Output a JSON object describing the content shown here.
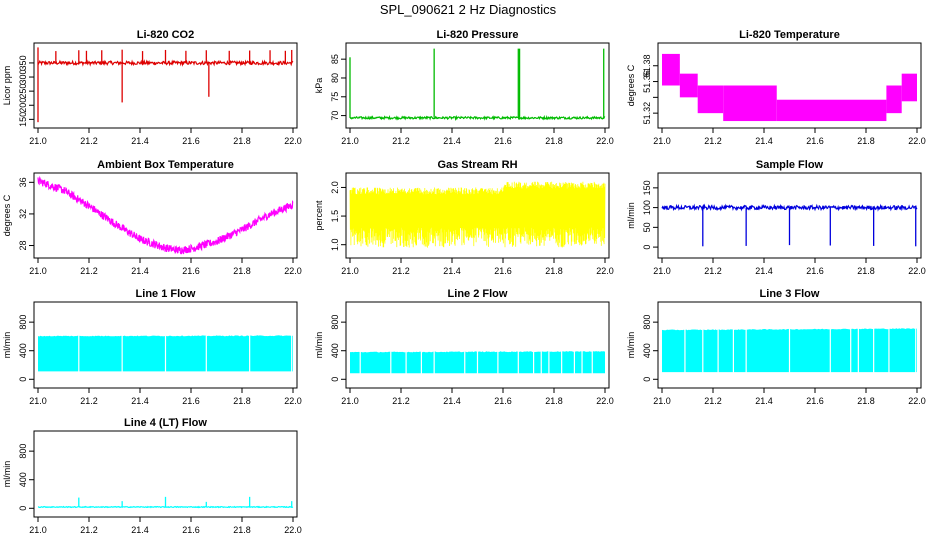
{
  "page_title": "SPL_090621  2 Hz Diagnostics",
  "chart_data": [
    {
      "type": "line",
      "title": "Li-820 CO2",
      "ylabel": "Licor ppm",
      "color": "#dd0000",
      "xlim": [
        21.0,
        22.0
      ],
      "ylim": [
        130,
        410
      ],
      "xticks": [
        "21.0",
        "21.2",
        "21.4",
        "21.6",
        "21.8",
        "22.0"
      ],
      "yticks": [
        150,
        200,
        250,
        300,
        350
      ],
      "series": {
        "name": "CO2",
        "baseline": 350,
        "noise": 6,
        "x_range": [
          21.0,
          22.0
        ],
        "spikes": [
          {
            "x": 21.0,
            "to": 140
          },
          {
            "x": 21.0,
            "to": 405
          },
          {
            "x": 21.07,
            "to": 392
          },
          {
            "x": 21.16,
            "to": 395
          },
          {
            "x": 21.19,
            "to": 393
          },
          {
            "x": 21.25,
            "to": 395
          },
          {
            "x": 21.33,
            "to": 210
          },
          {
            "x": 21.33,
            "to": 397
          },
          {
            "x": 21.41,
            "to": 392
          },
          {
            "x": 21.5,
            "to": 396
          },
          {
            "x": 21.58,
            "to": 393
          },
          {
            "x": 21.66,
            "to": 395
          },
          {
            "x": 21.67,
            "to": 230
          },
          {
            "x": 21.75,
            "to": 393
          },
          {
            "x": 21.83,
            "to": 394
          },
          {
            "x": 21.91,
            "to": 395
          },
          {
            "x": 21.97,
            "to": 393
          },
          {
            "x": 21.995,
            "to": 396
          }
        ]
      }
    },
    {
      "type": "line",
      "title": "Li-820 Pressure",
      "ylabel": "kPa",
      "color": "#00bb00",
      "xlim": [
        21.0,
        22.0
      ],
      "ylim": [
        67.5,
        88.5
      ],
      "xticks": [
        "21.0",
        "21.2",
        "21.4",
        "21.6",
        "21.8",
        "22.0"
      ],
      "yticks": [
        70,
        75,
        80,
        85
      ],
      "series": {
        "name": "Pressure",
        "baseline": 69.4,
        "noise": 0.3,
        "x_range": [
          21.0,
          22.0
        ],
        "spikes": [
          {
            "x": 21.0,
            "to": 85.5
          },
          {
            "x": 21.33,
            "to": 87.8
          },
          {
            "x": 21.66,
            "to": 87.8
          },
          {
            "x": 21.665,
            "to": 87.8
          },
          {
            "x": 21.995,
            "to": 87.8
          }
        ]
      }
    },
    {
      "type": "area",
      "title": "Li-820 Temperature",
      "ylabel": "degrees C",
      "color": "#ff00ff",
      "xlim": [
        21.0,
        22.0
      ],
      "ylim": [
        51.305,
        51.405
      ],
      "xticks": [
        "21.0",
        "21.2",
        "21.4",
        "21.6",
        "21.8",
        "22.0"
      ],
      "yticks": [
        51.32,
        51.34,
        51.36,
        51.38
      ],
      "ytick_labels": [
        "51.32",
        "",
        "51.36",
        "51.38"
      ],
      "bands": [
        {
          "x0": 21.0,
          "x1": 21.07,
          "lo": 51.355,
          "hi": 51.395
        },
        {
          "x0": 21.07,
          "x1": 21.14,
          "lo": 51.34,
          "hi": 51.37
        },
        {
          "x0": 21.14,
          "x1": 21.24,
          "lo": 51.32,
          "hi": 51.355
        },
        {
          "x0": 21.24,
          "x1": 21.45,
          "lo": 51.31,
          "hi": 51.355
        },
        {
          "x0": 21.45,
          "x1": 21.88,
          "lo": 51.31,
          "hi": 51.337
        },
        {
          "x0": 21.88,
          "x1": 21.94,
          "lo": 51.32,
          "hi": 51.355
        },
        {
          "x0": 21.94,
          "x1": 22.0,
          "lo": 51.335,
          "hi": 51.37
        }
      ]
    },
    {
      "type": "line",
      "title": "Ambient Box Temperature",
      "ylabel": "degrees C",
      "color": "#ff00ff",
      "xlim": [
        21.0,
        22.0
      ],
      "ylim": [
        26.8,
        36.8
      ],
      "xticks": [
        "21.0",
        "21.2",
        "21.4",
        "21.6",
        "21.8",
        "22.0"
      ],
      "yticks": [
        28,
        32,
        36
      ],
      "series": {
        "name": "Ambient",
        "x": [
          21.0,
          21.1,
          21.2,
          21.3,
          21.4,
          21.5,
          21.55,
          21.6,
          21.7,
          21.8,
          21.9,
          22.0
        ],
        "y": [
          36.2,
          35.0,
          33.0,
          30.8,
          28.8,
          27.7,
          27.4,
          27.6,
          28.5,
          30.0,
          31.8,
          33.2
        ],
        "noise": 0.5
      }
    },
    {
      "type": "line",
      "title": "Gas Stream RH",
      "ylabel": "percent",
      "color": "#ffff00",
      "xlim": [
        21.0,
        22.0
      ],
      "ylim": [
        0.82,
        2.2
      ],
      "xticks": [
        "21.0",
        "21.2",
        "21.4",
        "21.6",
        "21.8",
        "22.0"
      ],
      "yticks": [
        1.0,
        1.5,
        2.0
      ],
      "ytick_labels": [
        "1.0",
        "1.5",
        "2.0"
      ],
      "series": {
        "name": "RH",
        "x_range": [
          21.0,
          22.0
        ],
        "upper": 2.0,
        "lower": 0.95,
        "density": "high"
      }
    },
    {
      "type": "line",
      "title": "Sample Flow",
      "ylabel": "ml/min",
      "color": "#0000dd",
      "xlim": [
        21.0,
        22.0
      ],
      "ylim": [
        -20,
        180
      ],
      "xticks": [
        "21.0",
        "21.2",
        "21.4",
        "21.6",
        "21.8",
        "22.0"
      ],
      "yticks": [
        0,
        50,
        100,
        150
      ],
      "series": {
        "name": "Sample",
        "baseline": 100,
        "noise": 5,
        "x_range": [
          21.0,
          22.0
        ],
        "spikes": [
          {
            "x": 21.16,
            "to": 2
          },
          {
            "x": 21.33,
            "to": 3
          },
          {
            "x": 21.5,
            "to": 5
          },
          {
            "x": 21.66,
            "to": 4
          },
          {
            "x": 21.83,
            "to": 3
          },
          {
            "x": 21.995,
            "to": 2
          }
        ]
      }
    },
    {
      "type": "area",
      "title": "Line 1 Flow",
      "ylabel": "ml/min",
      "color": "#00ffff",
      "xlim": [
        21.0,
        22.0
      ],
      "ylim": [
        -80,
        1040
      ],
      "xticks": [
        "21.0",
        "21.2",
        "21.4",
        "21.6",
        "21.8",
        "22.0"
      ],
      "yticks": [
        0,
        400,
        800
      ],
      "lo": 110,
      "hi_start": 605,
      "hi_end": 610,
      "gaps": [
        21.16,
        21.33,
        21.5,
        21.66,
        21.83,
        21.995
      ]
    },
    {
      "type": "area",
      "title": "Line 2 Flow",
      "ylabel": "ml/min",
      "color": "#00ffff",
      "xlim": [
        21.0,
        22.0
      ],
      "ylim": [
        -80,
        1040
      ],
      "xticks": [
        "21.0",
        "21.2",
        "21.4",
        "21.6",
        "21.8",
        "22.0"
      ],
      "yticks": [
        0,
        400,
        800
      ],
      "lo": 85,
      "hi_start": 380,
      "hi_end": 390,
      "gaps": [
        21.04,
        21.16,
        21.22,
        21.28,
        21.33,
        21.45,
        21.5,
        21.58,
        21.66,
        21.72,
        21.75,
        21.78,
        21.83,
        21.88,
        21.91,
        21.95
      ]
    },
    {
      "type": "area",
      "title": "Line 3 Flow",
      "ylabel": "ml/min",
      "color": "#00ffff",
      "xlim": [
        21.0,
        22.0
      ],
      "ylim": [
        -80,
        1040
      ],
      "xticks": [
        "21.0",
        "21.2",
        "21.4",
        "21.6",
        "21.8",
        "22.0"
      ],
      "yticks": [
        0,
        400,
        800
      ],
      "lo": 100,
      "hi_start": 690,
      "hi_end": 710,
      "gaps": [
        21.09,
        21.16,
        21.22,
        21.28,
        21.33,
        21.5,
        21.66,
        21.74,
        21.77,
        21.83,
        21.89,
        21.995
      ]
    },
    {
      "type": "line",
      "title": "Line 4 (LT) Flow",
      "ylabel": "ml/min",
      "color": "#00ffff",
      "xlim": [
        21.0,
        22.0
      ],
      "ylim": [
        -80,
        1040
      ],
      "xticks": [
        "21.0",
        "21.2",
        "21.4",
        "21.6",
        "21.8",
        "22.0"
      ],
      "yticks": [
        0,
        400,
        800
      ],
      "series": {
        "name": "Line4",
        "baseline": 18,
        "noise": 6,
        "x_range": [
          21.0,
          22.0
        ],
        "spikes": [
          {
            "x": 21.16,
            "to": 150
          },
          {
            "x": 21.33,
            "to": 100
          },
          {
            "x": 21.5,
            "to": 160
          },
          {
            "x": 21.66,
            "to": 90
          },
          {
            "x": 21.83,
            "to": 160
          },
          {
            "x": 21.995,
            "to": 100
          }
        ]
      }
    }
  ]
}
